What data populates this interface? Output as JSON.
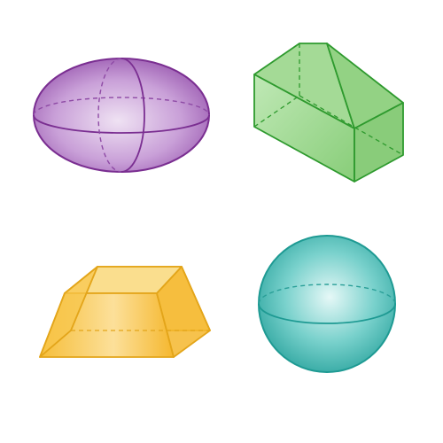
{
  "figure": {
    "shapes": [
      {
        "id": "ellipsoid",
        "kind": "ellipsoid",
        "fill": "#C79BD6",
        "stroke": "#7A2E91"
      },
      {
        "id": "pentagonal-prism",
        "kind": "prism",
        "fill": "#8DD17D",
        "stroke": "#2E9A2E"
      },
      {
        "id": "trapezoidal-prism",
        "kind": "prism",
        "fill": "#F9C84A",
        "stroke": "#E3A51A"
      },
      {
        "id": "sphere",
        "kind": "sphere",
        "fill": "#6CCFC9",
        "stroke": "#1E9A93"
      }
    ]
  }
}
